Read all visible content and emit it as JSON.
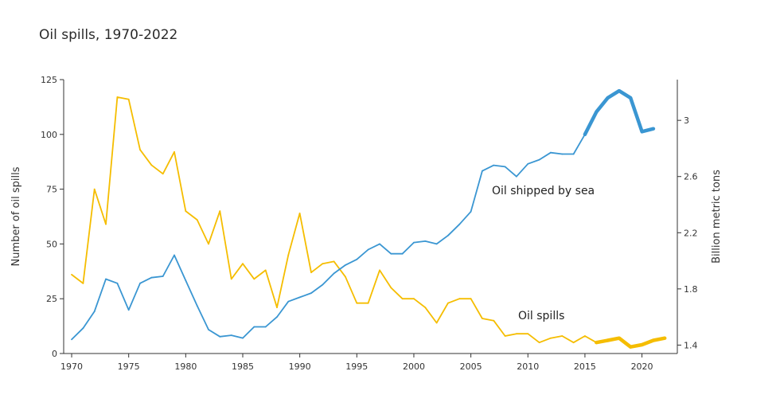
{
  "chart_data": {
    "type": "line",
    "title": "Oil spills, 1970-2022",
    "x_label": "",
    "y_left_label": "Number of oil spills",
    "y_right_label": "Billion metric tons",
    "y_left_range": [
      0,
      125
    ],
    "y_left_ticks": [
      0,
      25,
      50,
      75,
      100,
      125
    ],
    "y_right_range": [
      1.34,
      3.29
    ],
    "y_right_ticks": [
      1.4,
      1.8,
      2.2,
      2.6,
      3
    ],
    "x_range": [
      1969.3,
      2023.1
    ],
    "x_ticks": [
      1970,
      1975,
      1980,
      1985,
      1990,
      1995,
      2000,
      2005,
      2010,
      2015,
      2020
    ],
    "grid": false,
    "legend": "inline labels",
    "series": [
      {
        "name": "Oil spills",
        "axis": "left",
        "color": "#f5bd00",
        "x": [
          1970,
          1971,
          1972,
          1973,
          1974,
          1975,
          1976,
          1977,
          1978,
          1979,
          1980,
          1981,
          1982,
          1983,
          1984,
          1985,
          1986,
          1987,
          1988,
          1989,
          1990,
          1991,
          1992,
          1993,
          1994,
          1995,
          1996,
          1997,
          1998,
          1999,
          2000,
          2001,
          2002,
          2003,
          2004,
          2005,
          2006,
          2007,
          2008,
          2009,
          2010,
          2011,
          2012,
          2013,
          2014,
          2015,
          2016,
          2017,
          2018,
          2019,
          2020,
          2021,
          2022
        ],
        "values": [
          36,
          32,
          75,
          59,
          117,
          116,
          93,
          86,
          82,
          92,
          65,
          61,
          50,
          65,
          34,
          41,
          34,
          38,
          21,
          45,
          64,
          37,
          41,
          42,
          35,
          23,
          23,
          38,
          30,
          25,
          25,
          21,
          14,
          23,
          25,
          25,
          16,
          15,
          8,
          9,
          9,
          5,
          7,
          8,
          5,
          8,
          5,
          6,
          7,
          3,
          4,
          6,
          7
        ],
        "highlight_from": 2016,
        "label": "Oil spills"
      },
      {
        "name": "Oil shipped by sea",
        "axis": "right",
        "color": "#3a96d2",
        "x": [
          1970,
          1971,
          1972,
          1973,
          1974,
          1975,
          1976,
          1977,
          1978,
          1979,
          1980,
          1981,
          1982,
          1983,
          1984,
          1985,
          1986,
          1987,
          1988,
          1989,
          1990,
          1991,
          1992,
          1993,
          1994,
          1995,
          1996,
          1997,
          1998,
          1999,
          2000,
          2001,
          2002,
          2003,
          2004,
          2005,
          2006,
          2007,
          2008,
          2009,
          2010,
          2011,
          2012,
          2013,
          2014,
          2015,
          2016,
          2017,
          2018,
          2019,
          2020,
          2021
        ],
        "values": [
          1.44,
          1.52,
          1.64,
          1.87,
          1.84,
          1.65,
          1.84,
          1.88,
          1.89,
          2.04,
          1.86,
          1.68,
          1.51,
          1.46,
          1.47,
          1.45,
          1.53,
          1.53,
          1.6,
          1.71,
          1.74,
          1.77,
          1.83,
          1.91,
          1.97,
          2.01,
          2.08,
          2.12,
          2.05,
          2.05,
          2.13,
          2.14,
          2.12,
          2.18,
          2.26,
          2.35,
          2.64,
          2.68,
          2.67,
          2.6,
          2.69,
          2.72,
          2.77,
          2.76,
          2.76,
          2.9,
          3.06,
          3.16,
          3.21,
          3.16,
          2.92,
          2.94
        ],
        "highlight_from": 2015,
        "label": "Oil shipped by sea"
      }
    ]
  }
}
